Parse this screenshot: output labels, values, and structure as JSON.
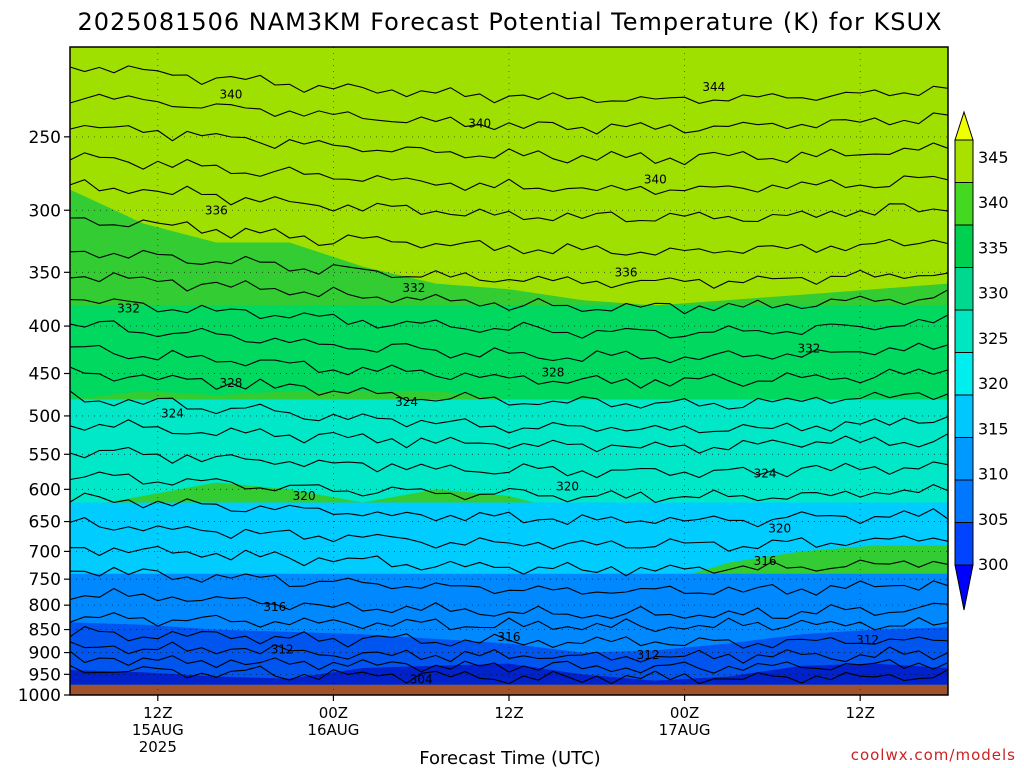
{
  "chart_data": {
    "type": "heatmap",
    "title": "2025081506 NAM3KM Forecast Potential Temperature (K) for KSUX",
    "xlabel": "Forecast Time (UTC)",
    "ylabel": "",
    "credit": "coolwx.com/models",
    "y_axis": {
      "scale": "pressure (hPa), reversed",
      "ylim": [
        1000,
        200
      ],
      "ticks": [
        "250",
        "300",
        "350",
        "400",
        "450",
        "500",
        "550",
        "600",
        "650",
        "700",
        "750",
        "800",
        "850",
        "900",
        "950",
        "1000"
      ]
    },
    "x_axis": {
      "unit": "forecast hours from 2025-08-15 06Z",
      "xlim": [
        0,
        60
      ],
      "ticks": [
        {
          "hour": 6,
          "line1": "12Z",
          "line2": "15AUG",
          "line3": "2025"
        },
        {
          "hour": 18,
          "line1": "00Z",
          "line2": "16AUG",
          "line3": ""
        },
        {
          "hour": 30,
          "line1": "12Z",
          "line2": "",
          "line3": ""
        },
        {
          "hour": 42,
          "line1": "00Z",
          "line2": "17AUG",
          "line3": ""
        },
        {
          "hour": 54,
          "line1": "12Z",
          "line2": "",
          "line3": ""
        }
      ]
    },
    "colorbar": {
      "labels": [
        "345",
        "340",
        "335",
        "330",
        "325",
        "320",
        "315",
        "310",
        "305",
        "300"
      ],
      "levels": [
        300,
        305,
        310,
        315,
        320,
        325,
        330,
        335,
        340,
        345
      ],
      "colors": [
        "#0000ff",
        "#0044ff",
        "#0077ff",
        "#0099ff",
        "#00c8ff",
        "#00eeee",
        "#00e6c0",
        "#00d890",
        "#00d050",
        "#44d820",
        "#a8e000",
        "#f0ff00"
      ],
      "extend": "both"
    },
    "contour_interval_K": 2,
    "contour_labels": [
      {
        "text": "340",
        "hour": 11,
        "p": 225
      },
      {
        "text": "340",
        "hour": 28,
        "p": 242
      },
      {
        "text": "344",
        "hour": 44,
        "p": 221
      },
      {
        "text": "340",
        "hour": 40,
        "p": 278
      },
      {
        "text": "336",
        "hour": 10,
        "p": 300
      },
      {
        "text": "336",
        "hour": 38,
        "p": 350
      },
      {
        "text": "332",
        "hour": 23.5,
        "p": 364
      },
      {
        "text": "332",
        "hour": 4,
        "p": 383
      },
      {
        "text": "332",
        "hour": 50.5,
        "p": 423
      },
      {
        "text": "328",
        "hour": 11,
        "p": 461
      },
      {
        "text": "328",
        "hour": 33,
        "p": 449
      },
      {
        "text": "324",
        "hour": 7,
        "p": 497
      },
      {
        "text": "324",
        "hour": 23,
        "p": 483
      },
      {
        "text": "324",
        "hour": 47.5,
        "p": 577
      },
      {
        "text": "320",
        "hour": 16,
        "p": 610
      },
      {
        "text": "320",
        "hour": 34,
        "p": 596
      },
      {
        "text": "320",
        "hour": 48.5,
        "p": 661
      },
      {
        "text": "316",
        "hour": 47.5,
        "p": 717
      },
      {
        "text": "316",
        "hour": 14,
        "p": 804
      },
      {
        "text": "316",
        "hour": 30,
        "p": 866
      },
      {
        "text": "312",
        "hour": 14.5,
        "p": 893
      },
      {
        "text": "312",
        "hour": 39.5,
        "p": 905
      },
      {
        "text": "312",
        "hour": 54.5,
        "p": 872
      },
      {
        "text": "304",
        "hour": 24,
        "p": 962
      }
    ],
    "fill_bands_approx": [
      {
        "range_K": "340-345",
        "top_p": 200,
        "bottom_p": [
          200,
          200,
          200,
          200,
          200,
          200,
          240,
          240,
          225,
          220,
          210,
          215,
          230
        ]
      },
      {
        "range_K": "335-340",
        "top_p": 200,
        "bottom_p": [
          285,
          310,
          325,
          325,
          345,
          360,
          365,
          375,
          380,
          375,
          370,
          365,
          360
        ]
      },
      {
        "range_K": "325-330",
        "top_p": 380,
        "bottom_p": [
          480,
          470,
          475,
          470,
          470,
          470,
          480,
          480,
          500,
          500,
          500,
          500,
          500
        ]
      },
      {
        "range_K": "320-325",
        "top_p": 480,
        "bottom_p": [
          630,
          610,
          590,
          600,
          620,
          600,
          610,
          640,
          670,
          680,
          680,
          670,
          660
        ]
      },
      {
        "range_K": "315-320",
        "top_p": 620,
        "bottom_p": [
          745,
          755,
          760,
          780,
          800,
          790,
          790,
          780,
          760,
          720,
          700,
          690,
          690
        ]
      },
      {
        "range_K": "300-315",
        "top_p": 740,
        "bottom_p": [
          975,
          975,
          975,
          975,
          975,
          975,
          975,
          975,
          975,
          975,
          975,
          975,
          975
        ]
      }
    ],
    "ground_below_p": 975
  }
}
